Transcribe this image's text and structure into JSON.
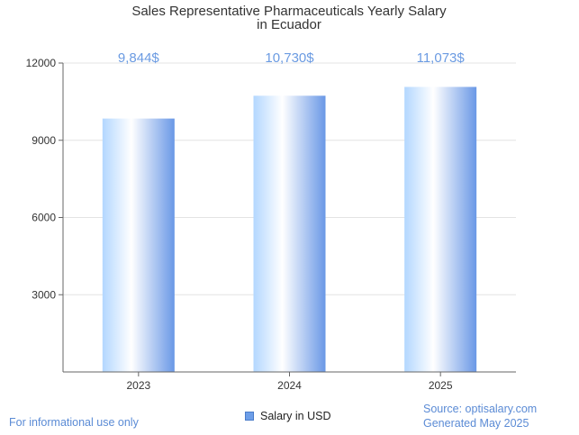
{
  "chart_data": {
    "type": "bar",
    "title_lines": [
      "Sales Representative Pharmaceuticals Yearly Salary",
      "in Ecuador"
    ],
    "categories": [
      "2023",
      "2024",
      "2025"
    ],
    "series": [
      {
        "name": "Salary in USD",
        "values": [
          9844,
          10730,
          11073
        ]
      }
    ],
    "value_labels": [
      "9,844$",
      "10,730$",
      "11,073$"
    ],
    "y_ticks": [
      "3000",
      "6000",
      "9000",
      "12000"
    ],
    "y_tick_values": [
      3000,
      6000,
      9000,
      12000
    ],
    "ylim": [
      0,
      12000
    ],
    "grid": true,
    "legend_position": "bottom-center"
  },
  "footer": {
    "left": "For informational use only",
    "source": "Source: optisalary.com",
    "generated": "Generated May 2025"
  },
  "colors": {
    "bar_light": "#ffffff",
    "bar_mid": "#b3d7ff",
    "bar_dark": "#6a98e6",
    "value_label": "#6b9be2",
    "grid": "#e3e3e3",
    "axis": "#666666"
  }
}
